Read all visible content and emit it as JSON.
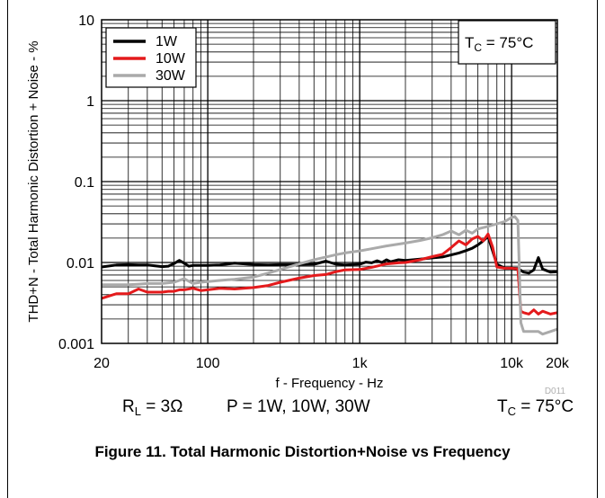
{
  "chart_data": {
    "type": "line",
    "title": "",
    "xlabel": "f - Frequency - Hz",
    "ylabel": "THD+N - Total Harmonic Distortion + Noise - %",
    "xscale": "log",
    "yscale": "log",
    "xlim": [
      20,
      20000
    ],
    "ylim": [
      0.001,
      10
    ],
    "xticks": [
      {
        "value": 20,
        "label": "20"
      },
      {
        "value": 100,
        "label": "100"
      },
      {
        "value": 1000,
        "label": "1k"
      },
      {
        "value": 10000,
        "label": "10k"
      },
      {
        "value": 20000,
        "label": "20k"
      }
    ],
    "yticks": [
      {
        "value": 0.001,
        "label": "0.001"
      },
      {
        "value": 0.01,
        "label": "0.01"
      },
      {
        "value": 0.1,
        "label": "0.1"
      },
      {
        "value": 1,
        "label": "1"
      },
      {
        "value": 10,
        "label": "10"
      }
    ],
    "grid": true,
    "legend_position": "top-left",
    "annotation": {
      "main": "T",
      "sub": "C",
      "rest": " = 75°C"
    },
    "watermark": "D011",
    "series": [
      {
        "name": "1W",
        "color": "#000000",
        "x": [
          20,
          25,
          30,
          35,
          40,
          45,
          50,
          55,
          60,
          65,
          70,
          75,
          80,
          90,
          100,
          120,
          150,
          200,
          250,
          300,
          400,
          500,
          600,
          700,
          800,
          1000,
          1100,
          1200,
          1300,
          1400,
          1500,
          1600,
          1800,
          2000,
          2500,
          3000,
          3500,
          4000,
          4500,
          5000,
          5500,
          6000,
          6500,
          7000,
          8000,
          9000,
          10000,
          11000,
          12000,
          13000,
          14000,
          15000,
          16000,
          18000,
          20000
        ],
        "y": [
          0.0088,
          0.0093,
          0.0094,
          0.0093,
          0.0093,
          0.0091,
          0.0089,
          0.009,
          0.0097,
          0.0106,
          0.0098,
          0.009,
          0.0092,
          0.0092,
          0.0092,
          0.0093,
          0.0098,
          0.0094,
          0.0093,
          0.0094,
          0.0094,
          0.0095,
          0.0104,
          0.0095,
          0.0093,
          0.0095,
          0.0101,
          0.0099,
          0.0105,
          0.01,
          0.0108,
          0.0102,
          0.0108,
          0.0106,
          0.011,
          0.0114,
          0.0117,
          0.0124,
          0.0131,
          0.014,
          0.015,
          0.0165,
          0.0185,
          0.021,
          0.0095,
          0.0085,
          0.0085,
          0.0084,
          0.0076,
          0.0074,
          0.0081,
          0.0115,
          0.0083,
          0.0076,
          0.0077
        ]
      },
      {
        "name": "10W",
        "color": "#e41a1c",
        "x": [
          20,
          25,
          30,
          35,
          40,
          45,
          50,
          55,
          60,
          65,
          70,
          80,
          90,
          100,
          120,
          150,
          200,
          250,
          300,
          400,
          500,
          600,
          700,
          800,
          1000,
          1200,
          1500,
          1800,
          2000,
          2500,
          3000,
          3500,
          4000,
          4500,
          5000,
          5500,
          6000,
          6500,
          7000,
          7500,
          8000,
          9000,
          10000,
          11000,
          11500,
          12000,
          13000,
          14000,
          15000,
          16000,
          18000,
          20000
        ],
        "y": [
          0.0036,
          0.0041,
          0.0041,
          0.0047,
          0.0043,
          0.0043,
          0.0043,
          0.0044,
          0.0044,
          0.0046,
          0.0046,
          0.0048,
          0.0045,
          0.0046,
          0.0048,
          0.0047,
          0.0049,
          0.0052,
          0.0057,
          0.0064,
          0.0069,
          0.0071,
          0.0077,
          0.0081,
          0.0082,
          0.0087,
          0.0096,
          0.0099,
          0.01,
          0.0108,
          0.0118,
          0.0126,
          0.0153,
          0.0185,
          0.0165,
          0.0195,
          0.021,
          0.0185,
          0.0225,
          0.0155,
          0.0088,
          0.0085,
          0.0085,
          0.0083,
          0.0025,
          0.0024,
          0.0023,
          0.0026,
          0.0023,
          0.0025,
          0.0023,
          0.0024
        ]
      },
      {
        "name": "30W",
        "color": "#aaaaaa",
        "x": [
          20,
          25,
          30,
          35,
          40,
          50,
          60,
          70,
          80,
          90,
          100,
          120,
          150,
          200,
          250,
          300,
          400,
          500,
          600,
          700,
          800,
          1000,
          1200,
          1500,
          2000,
          2500,
          3000,
          3500,
          4000,
          4500,
          5000,
          5500,
          6000,
          7000,
          8000,
          9000,
          10000,
          10500,
          11000,
          11500,
          12000,
          13000,
          14000,
          15000,
          16000,
          18000,
          20000
        ],
        "y": [
          0.0053,
          0.0053,
          0.0053,
          0.0054,
          0.0055,
          0.0055,
          0.0057,
          0.0063,
          0.0055,
          0.0057,
          0.0058,
          0.006,
          0.0062,
          0.0066,
          0.0074,
          0.0082,
          0.0096,
          0.0108,
          0.0117,
          0.0125,
          0.0131,
          0.0139,
          0.0148,
          0.016,
          0.0174,
          0.0187,
          0.0202,
          0.022,
          0.0245,
          0.022,
          0.025,
          0.023,
          0.026,
          0.028,
          0.03,
          0.032,
          0.036,
          0.037,
          0.033,
          0.0018,
          0.0014,
          0.0014,
          0.0014,
          0.0014,
          0.0013,
          0.0014,
          0.0015
        ]
      }
    ]
  },
  "conditions": {
    "rl_main": "R",
    "rl_sub": "L",
    "rl_rest": " = 3Ω",
    "power": "P = 1W, 10W, 30W",
    "tc_main": "T",
    "tc_sub": "C",
    "tc_rest": " = 75°C"
  },
  "caption": "Figure 11. Total Harmonic Distortion+Noise vs Frequency"
}
